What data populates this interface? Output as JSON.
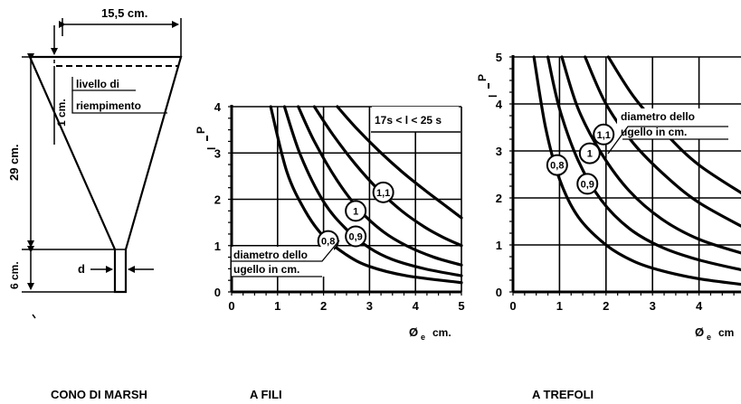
{
  "cone": {
    "top_width": "15,5 cm.",
    "height": "29 cm.",
    "fill_depth": "1 cm.",
    "fill_label_line1": "livello di",
    "fill_label_line2": "riempimento",
    "nozzle_height": "6 cm.",
    "nozzle_diameter": "d",
    "caption": "CONO DI MARSH"
  },
  "chart_fili": {
    "caption": "A FILI",
    "ylabel_top": "P",
    "ylabel_bottom": "l",
    "xlabel": "Ø",
    "xlabel_sub": "e",
    "xunit": "cm.",
    "time_range": "17s < l < 25 s",
    "note_line1": "diametro dello",
    "note_line2": "ugello in cm.",
    "xticks": [
      "0",
      "1",
      "2",
      "3",
      "4",
      "5"
    ],
    "yticks": [
      "0",
      "1",
      "2",
      "3",
      "4"
    ],
    "xlim": [
      0,
      5
    ],
    "ylim": [
      0,
      4
    ],
    "curves": [
      {
        "name": "0,8",
        "points": [
          [
            0.85,
            4.0
          ],
          [
            1.2,
            2.6
          ],
          [
            1.6,
            1.75
          ],
          [
            2.0,
            1.2
          ],
          [
            2.5,
            0.8
          ],
          [
            3.0,
            0.55
          ],
          [
            3.8,
            0.35
          ],
          [
            5.0,
            0.2
          ]
        ]
      },
      {
        "name": "0,9",
        "points": [
          [
            1.15,
            4.0
          ],
          [
            1.5,
            2.95
          ],
          [
            2.0,
            1.95
          ],
          [
            2.5,
            1.35
          ],
          [
            3.0,
            0.95
          ],
          [
            3.5,
            0.7
          ],
          [
            4.2,
            0.5
          ],
          [
            5.0,
            0.35
          ]
        ]
      },
      {
        "name": "1",
        "points": [
          [
            1.45,
            4.0
          ],
          [
            1.8,
            3.25
          ],
          [
            2.3,
            2.4
          ],
          [
            2.8,
            1.75
          ],
          [
            3.3,
            1.3
          ],
          [
            3.8,
            1.0
          ],
          [
            4.4,
            0.75
          ],
          [
            5.0,
            0.58
          ]
        ]
      },
      {
        "name": "1,1",
        "points": [
          [
            1.8,
            4.0
          ],
          [
            2.2,
            3.4
          ],
          [
            2.7,
            2.75
          ],
          [
            3.2,
            2.2
          ],
          [
            3.7,
            1.75
          ],
          [
            4.2,
            1.4
          ],
          [
            4.6,
            1.18
          ],
          [
            5.0,
            1.0
          ]
        ]
      },
      {
        "name": "",
        "points": [
          [
            2.3,
            4.0
          ],
          [
            2.7,
            3.55
          ],
          [
            3.2,
            3.05
          ],
          [
            3.7,
            2.6
          ],
          [
            4.2,
            2.2
          ],
          [
            4.6,
            1.9
          ],
          [
            5.0,
            1.6
          ]
        ]
      }
    ],
    "markers": [
      {
        "label": "0,8",
        "x": 2.1,
        "y": 1.1
      },
      {
        "label": "0,9",
        "x": 2.7,
        "y": 1.2
      },
      {
        "label": "1",
        "x": 2.7,
        "y": 1.75
      },
      {
        "label": "1,1",
        "x": 3.3,
        "y": 2.15
      }
    ]
  },
  "chart_trefoli": {
    "caption": "A TREFOLI",
    "ylabel_top": "P",
    "ylabel_bottom": "l",
    "xlabel": "Ø",
    "xlabel_sub": "e",
    "xunit": "cm",
    "note_line1": "diametro dello",
    "note_line2": "ugello in cm.",
    "xticks": [
      "0",
      "1",
      "2",
      "3",
      "4"
    ],
    "yticks": [
      "0",
      "1",
      "2",
      "3",
      "4",
      "5"
    ],
    "xlim": [
      0,
      5
    ],
    "ylim": [
      0,
      5
    ],
    "curves": [
      {
        "name": "0,8",
        "points": [
          [
            0.45,
            5.0
          ],
          [
            0.7,
            3.5
          ],
          [
            1.0,
            2.4
          ],
          [
            1.4,
            1.6
          ],
          [
            2.0,
            1.0
          ],
          [
            2.6,
            0.65
          ],
          [
            3.2,
            0.45
          ],
          [
            4.0,
            0.28
          ],
          [
            5.0,
            0.15
          ]
        ]
      },
      {
        "name": "0,9",
        "points": [
          [
            0.75,
            5.0
          ],
          [
            1.0,
            3.9
          ],
          [
            1.4,
            2.8
          ],
          [
            1.9,
            1.95
          ],
          [
            2.5,
            1.35
          ],
          [
            3.2,
            0.95
          ],
          [
            4.0,
            0.68
          ],
          [
            5.0,
            0.45
          ]
        ]
      },
      {
        "name": "1",
        "points": [
          [
            1.05,
            5.0
          ],
          [
            1.4,
            3.9
          ],
          [
            1.9,
            2.95
          ],
          [
            2.5,
            2.15
          ],
          [
            3.2,
            1.55
          ],
          [
            4.0,
            1.12
          ],
          [
            5.0,
            0.8
          ]
        ]
      },
      {
        "name": "1,1",
        "points": [
          [
            1.55,
            5.0
          ],
          [
            2.0,
            4.0
          ],
          [
            2.6,
            3.15
          ],
          [
            3.3,
            2.45
          ],
          [
            4.0,
            1.9
          ],
          [
            5.0,
            1.35
          ]
        ]
      },
      {
        "name": "",
        "points": [
          [
            2.05,
            5.0
          ],
          [
            2.6,
            4.15
          ],
          [
            3.3,
            3.35
          ],
          [
            4.0,
            2.7
          ],
          [
            5.0,
            2.05
          ]
        ]
      }
    ],
    "markers": [
      {
        "label": "0,8",
        "x": 0.95,
        "y": 2.7
      },
      {
        "label": "0,9",
        "x": 1.6,
        "y": 2.3
      },
      {
        "label": "1",
        "x": 1.65,
        "y": 2.95
      },
      {
        "label": "1,1",
        "x": 1.95,
        "y": 3.35
      }
    ]
  }
}
